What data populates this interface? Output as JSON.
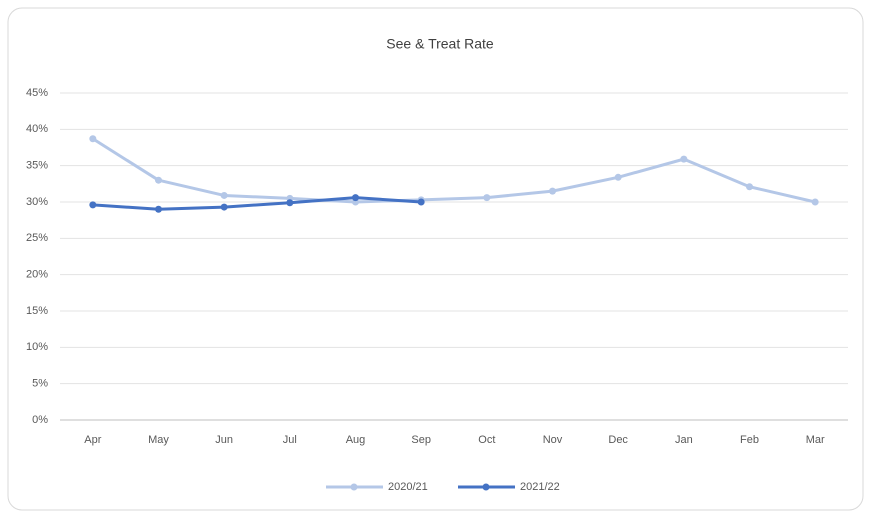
{
  "chart_data": {
    "type": "line",
    "title": "See & Treat Rate",
    "categories": [
      "Apr",
      "May",
      "Jun",
      "Jul",
      "Aug",
      "Sep",
      "Oct",
      "Nov",
      "Dec",
      "Jan",
      "Feb",
      "Mar"
    ],
    "series": [
      {
        "name": "2020/21",
        "color": "#b4c7e7",
        "values": [
          38.7,
          33.0,
          30.9,
          30.5,
          30.0,
          30.3,
          30.6,
          31.5,
          33.4,
          35.9,
          32.1,
          30.0
        ]
      },
      {
        "name": "2021/22",
        "color": "#4472c4",
        "values": [
          29.6,
          29.0,
          29.3,
          29.9,
          30.6,
          30.0,
          null,
          null,
          null,
          null,
          null,
          null
        ]
      }
    ],
    "ylim": [
      0,
      45
    ],
    "yticks": [
      {
        "value": 0,
        "label": "0%"
      },
      {
        "value": 5,
        "label": "5%"
      },
      {
        "value": 10,
        "label": "10%"
      },
      {
        "value": 15,
        "label": "15%"
      },
      {
        "value": 20,
        "label": "20%"
      },
      {
        "value": 25,
        "label": "25%"
      },
      {
        "value": 30,
        "label": "30%"
      },
      {
        "value": 35,
        "label": "35%"
      },
      {
        "value": 40,
        "label": "40%"
      },
      {
        "value": 45,
        "label": "45%"
      }
    ],
    "grid": true,
    "legend": "bottom"
  }
}
